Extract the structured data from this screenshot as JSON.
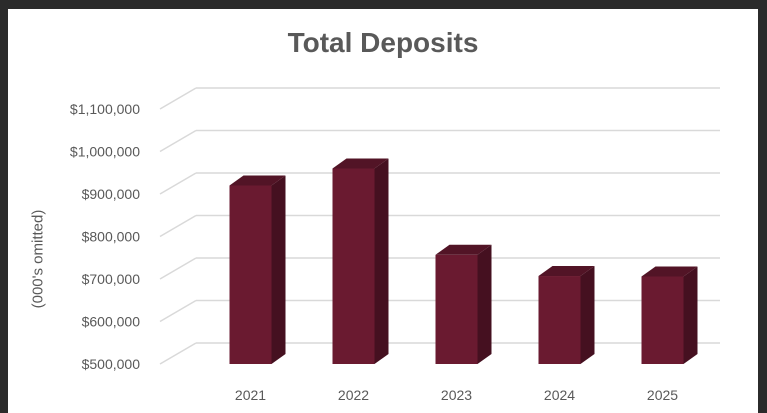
{
  "chart_data": {
    "type": "bar",
    "title": "Total Deposits",
    "xlabel": "",
    "ylabel": "(000's omitted)",
    "categories": [
      "2021",
      "2022",
      "2023",
      "2024",
      "2025"
    ],
    "values": [
      920000,
      960000,
      757000,
      707000,
      706000
    ],
    "ylim": [
      500000,
      1100000
    ],
    "yticks": [
      500000,
      600000,
      700000,
      800000,
      900000,
      1000000,
      1100000
    ],
    "ytick_labels": [
      "$500,000",
      "$600,000",
      "$700,000",
      "$800,000",
      "$900,000",
      "$1,000,000",
      "$1,100,000"
    ],
    "grid": true,
    "style": "3d",
    "colors": {
      "bar_front": "#6a1a30",
      "bar_side": "#451020",
      "bar_top": "#521426",
      "grid": "#d9d9d9",
      "frame": "#2b2b2b"
    }
  }
}
